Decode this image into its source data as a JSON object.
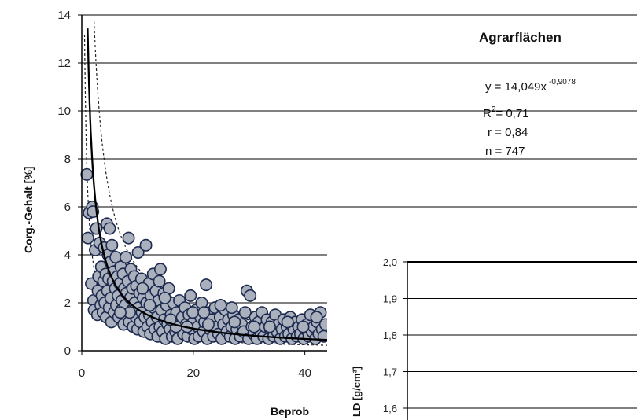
{
  "chart_data": [
    {
      "type": "scatter",
      "title": "Agrarflächen",
      "ylabel": "Corg.-Gehalt  [%]",
      "xlabel": "Beprob",
      "xlim": [
        0,
        44
      ],
      "ylim": [
        0,
        14
      ],
      "x_ticks": [
        "0",
        "20",
        "40"
      ],
      "y_ticks": [
        "0",
        "2",
        "4",
        "6",
        "8",
        "10",
        "12",
        "14"
      ],
      "grid": true,
      "annotations": {
        "equation_prefix": "y = 14,049x",
        "equation_exponent": "-0,9078",
        "r2_prefix": "R",
        "r2_sup": "2",
        "r2_value": "= 0,71",
        "r": "r = 0,84",
        "n": "n = 747"
      },
      "fit": {
        "kind": "power",
        "a": 14.049,
        "b": -0.9078
      },
      "bounds": {
        "upper_factor": 2.0,
        "lower_factor": 0.5
      },
      "point_color": "#aab0bc",
      "point_edge_color": "#1c2a50",
      "points": [
        [
          0.9,
          7.35
        ],
        [
          1.1,
          4.7
        ],
        [
          1.3,
          5.75
        ],
        [
          1.7,
          2.8
        ],
        [
          1.9,
          6.0
        ],
        [
          2.0,
          5.8
        ],
        [
          2.1,
          2.1
        ],
        [
          2.2,
          1.7
        ],
        [
          2.4,
          4.2
        ],
        [
          2.6,
          5.1
        ],
        [
          2.8,
          1.5
        ],
        [
          2.9,
          2.5
        ],
        [
          3.0,
          3.1
        ],
        [
          3.2,
          4.5
        ],
        [
          3.4,
          1.9
        ],
        [
          3.5,
          3.5
        ],
        [
          3.6,
          2.3
        ],
        [
          3.8,
          1.6
        ],
        [
          3.9,
          2.9
        ],
        [
          4.0,
          4.3
        ],
        [
          4.1,
          2.0
        ],
        [
          4.3,
          3.2
        ],
        [
          4.4,
          1.4
        ],
        [
          4.5,
          5.3
        ],
        [
          4.6,
          2.5
        ],
        [
          4.7,
          4.0
        ],
        [
          4.8,
          3.0
        ],
        [
          4.9,
          1.8
        ],
        [
          5.0,
          5.1
        ],
        [
          5.1,
          3.7
        ],
        [
          5.2,
          2.2
        ],
        [
          5.3,
          1.2
        ],
        [
          5.4,
          4.4
        ],
        [
          5.6,
          2.9
        ],
        [
          5.7,
          3.3
        ],
        [
          5.8,
          1.6
        ],
        [
          6.0,
          2.6
        ],
        [
          6.1,
          3.9
        ],
        [
          6.2,
          1.9
        ],
        [
          6.4,
          3.1
        ],
        [
          6.5,
          2.3
        ],
        [
          6.6,
          1.4
        ],
        [
          6.8,
          2.8
        ],
        [
          7.0,
          3.5
        ],
        [
          7.1,
          1.7
        ],
        [
          7.2,
          2.1
        ],
        [
          7.4,
          3.2
        ],
        [
          7.5,
          1.1
        ],
        [
          7.6,
          2.6
        ],
        [
          7.8,
          1.9
        ],
        [
          7.9,
          3.9
        ],
        [
          8.0,
          2.4
        ],
        [
          8.1,
          1.5
        ],
        [
          8.3,
          2.9
        ],
        [
          8.4,
          4.7
        ],
        [
          8.5,
          1.2
        ],
        [
          8.7,
          2.2
        ],
        [
          8.8,
          3.4
        ],
        [
          9.0,
          1.7
        ],
        [
          9.1,
          2.6
        ],
        [
          9.2,
          1.0
        ],
        [
          9.4,
          3.1
        ],
        [
          9.5,
          2.0
        ],
        [
          9.7,
          1.4
        ],
        [
          9.8,
          2.7
        ],
        [
          10.0,
          0.9
        ],
        [
          10.1,
          4.1
        ],
        [
          10.2,
          1.8
        ],
        [
          10.4,
          2.4
        ],
        [
          10.5,
          1.2
        ],
        [
          10.7,
          3.0
        ],
        [
          10.8,
          1.6
        ],
        [
          11.0,
          2.2
        ],
        [
          11.1,
          0.8
        ],
        [
          11.3,
          1.4
        ],
        [
          11.5,
          4.4
        ],
        [
          11.6,
          2.0
        ],
        [
          11.8,
          1.0
        ],
        [
          12.0,
          2.8
        ],
        [
          12.1,
          1.5
        ],
        [
          12.3,
          0.7
        ],
        [
          12.4,
          2.3
        ],
        [
          12.6,
          1.2
        ],
        [
          12.8,
          3.2
        ],
        [
          12.9,
          1.8
        ],
        [
          13.1,
          0.9
        ],
        [
          13.3,
          2.5
        ],
        [
          13.5,
          1.4
        ],
        [
          13.6,
          0.6
        ],
        [
          13.8,
          2.1
        ],
        [
          14.0,
          1.0
        ],
        [
          14.1,
          3.4
        ],
        [
          14.3,
          1.7
        ],
        [
          14.5,
          0.8
        ],
        [
          14.7,
          2.4
        ],
        [
          14.8,
          1.3
        ],
        [
          15.0,
          0.5
        ],
        [
          15.2,
          1.9
        ],
        [
          15.4,
          1.1
        ],
        [
          15.6,
          2.6
        ],
        [
          15.8,
          0.9
        ],
        [
          16.0,
          1.5
        ],
        [
          16.2,
          0.6
        ],
        [
          16.4,
          2.0
        ],
        [
          16.6,
          1.2
        ],
        [
          16.8,
          0.8
        ],
        [
          17.0,
          1.6
        ],
        [
          17.2,
          0.5
        ],
        [
          17.5,
          2.1
        ],
        [
          17.7,
          1.0
        ],
        [
          18.0,
          1.4
        ],
        [
          18.2,
          0.7
        ],
        [
          18.5,
          1.8
        ],
        [
          18.7,
          1.1
        ],
        [
          19.0,
          0.6
        ],
        [
          19.2,
          1.5
        ],
        [
          19.5,
          2.3
        ],
        [
          19.7,
          0.9
        ],
        [
          20.0,
          1.2
        ],
        [
          20.2,
          0.5
        ],
        [
          20.5,
          1.7
        ],
        [
          20.8,
          1.0
        ],
        [
          21.0,
          0.6
        ],
        [
          21.3,
          1.4
        ],
        [
          21.5,
          2.0
        ],
        [
          21.8,
          0.8
        ],
        [
          22.0,
          1.2
        ],
        [
          22.3,
          2.75
        ],
        [
          22.5,
          0.5
        ],
        [
          22.8,
          1.6
        ],
        [
          23.0,
          0.9
        ],
        [
          23.3,
          1.3
        ],
        [
          23.6,
          0.6
        ],
        [
          23.9,
          1.8
        ],
        [
          24.2,
          1.0
        ],
        [
          24.5,
          0.7
        ],
        [
          24.8,
          1.4
        ],
        [
          25.1,
          0.5
        ],
        [
          25.4,
          1.1
        ],
        [
          25.7,
          1.7
        ],
        [
          26.0,
          0.8
        ],
        [
          26.3,
          1.3
        ],
        [
          26.6,
          0.6
        ],
        [
          26.9,
          1.0
        ],
        [
          27.2,
          1.5
        ],
        [
          27.5,
          0.5
        ],
        [
          27.8,
          0.9
        ],
        [
          28.1,
          1.3
        ],
        [
          28.4,
          0.6
        ],
        [
          28.7,
          1.1
        ],
        [
          29.0,
          0.8
        ],
        [
          29.3,
          1.6
        ],
        [
          29.6,
          2.5
        ],
        [
          29.9,
          0.5
        ],
        [
          30.2,
          2.3
        ],
        [
          30.5,
          1.0
        ],
        [
          30.8,
          0.7
        ],
        [
          31.1,
          1.4
        ],
        [
          31.4,
          0.5
        ],
        [
          31.7,
          1.2
        ],
        [
          32.0,
          0.8
        ],
        [
          32.3,
          1.6
        ],
        [
          32.6,
          0.6
        ],
        [
          32.9,
          1.0
        ],
        [
          33.2,
          1.3
        ],
        [
          33.5,
          0.5
        ],
        [
          33.8,
          0.9
        ],
        [
          34.1,
          1.2
        ],
        [
          34.4,
          0.6
        ],
        [
          34.7,
          1.5
        ],
        [
          35.0,
          0.8
        ],
        [
          35.3,
          1.1
        ],
        [
          35.6,
          0.5
        ],
        [
          35.9,
          0.9
        ],
        [
          36.2,
          1.3
        ],
        [
          36.5,
          0.6
        ],
        [
          36.8,
          1.0
        ],
        [
          37.1,
          0.7
        ],
        [
          37.4,
          1.4
        ],
        [
          37.7,
          0.5
        ],
        [
          38.0,
          0.9
        ],
        [
          38.3,
          1.2
        ],
        [
          38.6,
          0.6
        ],
        [
          38.9,
          1.0
        ],
        [
          39.2,
          0.7
        ],
        [
          39.5,
          1.3
        ],
        [
          39.8,
          0.5
        ],
        [
          40.1,
          0.9
        ],
        [
          40.4,
          1.1
        ],
        [
          40.7,
          0.6
        ],
        [
          41.0,
          1.5
        ],
        [
          41.3,
          0.8
        ],
        [
          41.6,
          1.0
        ],
        [
          41.9,
          0.5
        ],
        [
          42.2,
          1.2
        ],
        [
          42.5,
          0.7
        ],
        [
          42.8,
          1.6
        ],
        [
          43.1,
          0.9
        ],
        [
          43.4,
          0.6
        ],
        [
          43.7,
          1.1
        ],
        [
          8.6,
          1.6
        ],
        [
          12.2,
          1.9
        ],
        [
          14.9,
          2.2
        ],
        [
          16.9,
          1.0
        ],
        [
          19.9,
          1.6
        ],
        [
          22.7,
          1.1
        ],
        [
          24.9,
          1.9
        ],
        [
          27.4,
          1.2
        ],
        [
          30.9,
          1.0
        ],
        [
          33.7,
          1.0
        ],
        [
          36.9,
          1.2
        ],
        [
          39.7,
          1.0
        ],
        [
          42.1,
          1.4
        ],
        [
          6.9,
          1.6
        ],
        [
          10.9,
          2.6
        ],
        [
          13.9,
          2.9
        ],
        [
          15.9,
          1.3
        ],
        [
          18.9,
          1.0
        ],
        [
          21.9,
          1.6
        ],
        [
          26.9,
          1.8
        ]
      ]
    },
    {
      "type": "line",
      "ylabel": "LD  [g/cm³]",
      "ylim": [
        1.6,
        2.0
      ],
      "y_ticks": [
        "1,6",
        "1,7",
        "1,8",
        "1,9",
        "2,0"
      ],
      "grid": true,
      "series": []
    }
  ]
}
